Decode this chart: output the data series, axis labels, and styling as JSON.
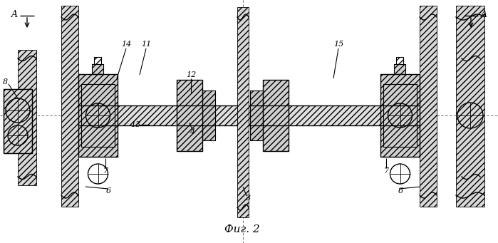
{
  "figsize": [
    6.99,
    3.41
  ],
  "dpi": 100,
  "bg": "#ffffff",
  "title": "Фиг. 2"
}
